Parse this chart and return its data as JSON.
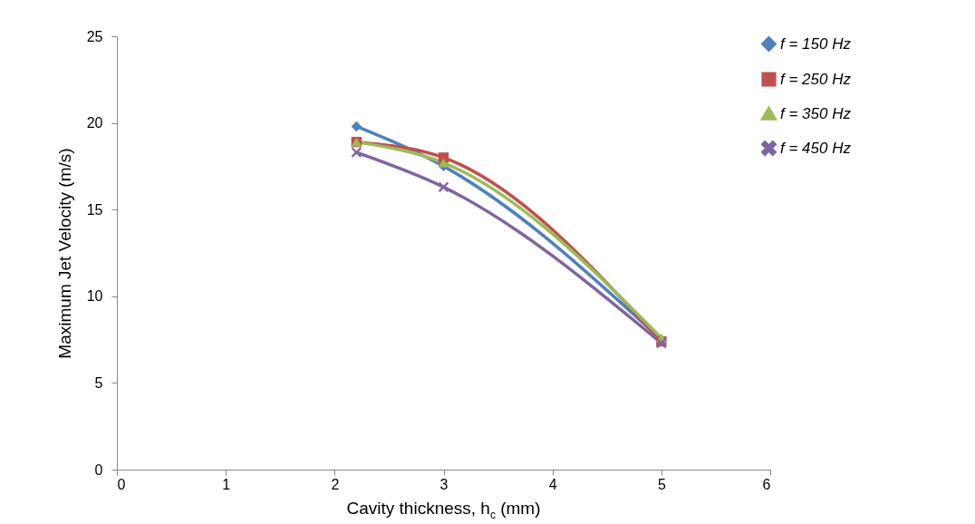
{
  "chart_data": {
    "type": "line",
    "xlabel": "Cavity thickness, h$_{c}$ (mm)",
    "ylabel": "Maximum Jet Velocity (m/s)",
    "xlim": [
      0,
      6
    ],
    "xticks": [
      0,
      1,
      2,
      3,
      4,
      5,
      6
    ],
    "ylim": [
      0,
      25
    ],
    "yticks": [
      0,
      5,
      10,
      15,
      20,
      25
    ],
    "grid": false,
    "legend": "right",
    "line_style": "solid",
    "series": [
      {
        "name": "f = 150 Hz",
        "color": "#4f81bd",
        "marker": "diamond",
        "x": [
          2.2,
          3,
          5
        ],
        "values": [
          19.8,
          17.5,
          7.5
        ]
      },
      {
        "name": "f = 250 Hz",
        "color": "#c0504d",
        "marker": "square",
        "x": [
          2.2,
          3,
          5
        ],
        "values": [
          18.9,
          18.0,
          7.4
        ]
      },
      {
        "name": "f = 350 Hz",
        "color": "#9bbb59",
        "marker": "triangle",
        "x": [
          2.2,
          3,
          5
        ],
        "values": [
          18.9,
          17.7,
          7.6
        ]
      },
      {
        "name": "f = 450 Hz",
        "color": "#8064a2",
        "marker": "cross",
        "x": [
          2.2,
          3,
          5
        ],
        "values": [
          18.3,
          16.3,
          7.3
        ]
      }
    ]
  }
}
